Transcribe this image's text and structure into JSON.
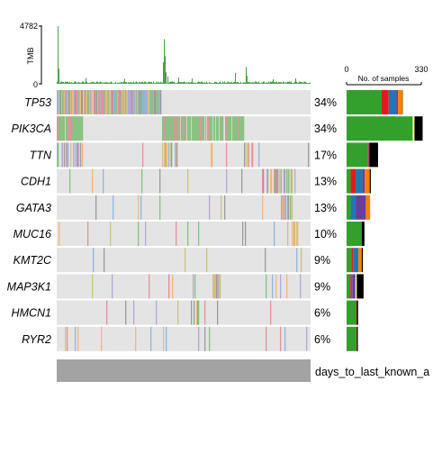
{
  "chart_data": {
    "type": "heatmap",
    "tmb": {
      "ylabel": "TMB",
      "y_ticks": [
        "0",
        "4782"
      ],
      "ylim": [
        0,
        4782
      ],
      "sample_count": 282,
      "spikes": [
        {
          "sample": 1,
          "value": 4782
        },
        {
          "sample": 2,
          "value": 1250
        },
        {
          "sample": 32,
          "value": 480
        },
        {
          "sample": 75,
          "value": 420
        },
        {
          "sample": 118,
          "value": 1800
        },
        {
          "sample": 119,
          "value": 3700
        },
        {
          "sample": 120,
          "value": 2300
        },
        {
          "sample": 121,
          "value": 950
        },
        {
          "sample": 123,
          "value": 600
        },
        {
          "sample": 135,
          "value": 520
        },
        {
          "sample": 150,
          "value": 430
        },
        {
          "sample": 198,
          "value": 900
        },
        {
          "sample": 210,
          "value": 1400
        },
        {
          "sample": 211,
          "value": 650
        },
        {
          "sample": 240,
          "value": 380
        },
        {
          "sample": 265,
          "value": 450
        }
      ]
    },
    "genes": [
      {
        "name": "TP53",
        "pct": "34%",
        "start": 0,
        "end": 115,
        "density": 0.98,
        "extra": 0.005,
        "bar": [
          {
            "color": "#33a02c",
            "value": 155
          },
          {
            "color": "#e31a1c",
            "value": 31
          },
          {
            "color": "#1f78b4",
            "value": 33
          },
          {
            "color": "#6a3d9a",
            "value": 8
          },
          {
            "color": "#ff7f00",
            "value": 19
          },
          {
            "color": "#000000",
            "value": 2
          },
          {
            "color": "#ffff99",
            "value": 4
          }
        ]
      },
      {
        "name": "PIK3CA",
        "pct": "34%",
        "start": 0,
        "end": 28,
        "density": 0.9,
        "extra": 0.0,
        "start2": 117,
        "end2": 208,
        "bar": [
          {
            "color": "#33a02c",
            "value": 292
          },
          {
            "color": "#ffff99",
            "value": 8
          },
          {
            "color": "#000000",
            "value": 36
          }
        ]
      },
      {
        "name": "TTN",
        "pct": "17%",
        "start": 0,
        "end": 28,
        "density": 0.55,
        "extra": 0.02,
        "start2": 117,
        "end2": 135,
        "start3": 208,
        "end3": 225,
        "bar": [
          {
            "color": "#33a02c",
            "value": 95
          },
          {
            "color": "#e31a1c",
            "value": 3
          },
          {
            "color": "#6a3d9a",
            "value": 3
          },
          {
            "color": "#000000",
            "value": 38
          }
        ]
      },
      {
        "name": "CDH1",
        "pct": "13%",
        "start": 228,
        "end": 262,
        "density": 0.6,
        "extra": 0.03,
        "bar": [
          {
            "color": "#33a02c",
            "value": 18
          },
          {
            "color": "#e31a1c",
            "value": 22
          },
          {
            "color": "#1f78b4",
            "value": 30
          },
          {
            "color": "#6a3d9a",
            "value": 10
          },
          {
            "color": "#ff7f00",
            "value": 22
          },
          {
            "color": "#000000",
            "value": 5
          }
        ]
      },
      {
        "name": "GATA3",
        "pct": "13%",
        "start": 248,
        "end": 262,
        "density": 0.8,
        "extra": 0.03,
        "bar": [
          {
            "color": "#33a02c",
            "value": 18
          },
          {
            "color": "#1f78b4",
            "value": 22
          },
          {
            "color": "#6a3d9a",
            "value": 45
          },
          {
            "color": "#ff7f00",
            "value": 19
          }
        ]
      },
      {
        "name": "MUC16",
        "pct": "10%",
        "start": 263,
        "end": 268,
        "density": 0.3,
        "extra": 0.045,
        "bar": [
          {
            "color": "#33a02c",
            "value": 64
          },
          {
            "color": "#e31a1c",
            "value": 3
          },
          {
            "color": "#000000",
            "value": 12
          }
        ]
      },
      {
        "name": "KMT2C",
        "pct": "9%",
        "start": 263,
        "end": 270,
        "density": 0.4,
        "extra": 0.04,
        "bar": [
          {
            "color": "#33a02c",
            "value": 21
          },
          {
            "color": "#e31a1c",
            "value": 8
          },
          {
            "color": "#1f78b4",
            "value": 23
          },
          {
            "color": "#ff7f00",
            "value": 15
          },
          {
            "color": "#000000",
            "value": 5
          }
        ]
      },
      {
        "name": "MAP3K1",
        "pct": "9%",
        "start": 172,
        "end": 182,
        "density": 0.8,
        "extra": 0.03,
        "bar": [
          {
            "color": "#33a02c",
            "value": 14
          },
          {
            "color": "#e31a1c",
            "value": 5
          },
          {
            "color": "#1f78b4",
            "value": 6
          },
          {
            "color": "#6a3d9a",
            "value": 14
          },
          {
            "color": "#ffff99",
            "value": 6
          },
          {
            "color": "#000000",
            "value": 30
          }
        ]
      },
      {
        "name": "HMCN1",
        "pct": "6%",
        "start": 0,
        "end": 0,
        "density": 0.0,
        "extra": 0.055,
        "bar": [
          {
            "color": "#33a02c",
            "value": 42
          },
          {
            "color": "#e31a1c",
            "value": 3
          },
          {
            "color": "#000000",
            "value": 6
          }
        ]
      },
      {
        "name": "RYR2",
        "pct": "6%",
        "start": 0,
        "end": 0,
        "density": 0.0,
        "extra": 0.055,
        "bar": [
          {
            "color": "#33a02c",
            "value": 43
          },
          {
            "color": "#e31a1c",
            "value": 2
          },
          {
            "color": "#000000",
            "value": 5
          }
        ]
      }
    ],
    "bar_axis": {
      "label": "No. of samples",
      "ticks": [
        "0",
        "330"
      ],
      "max": 330
    },
    "annotation": {
      "label": "days_to_last_known_a",
      "color": "#a3a3a3"
    },
    "colors": {
      "background": "#e3e3e3",
      "tmb_bar": "#1a8a1a",
      "mutation_palette": [
        "#87c17f",
        "#e48e97",
        "#8fb4dc",
        "#b3a5d2",
        "#f3b37a",
        "#999999",
        "#c4c480"
      ],
      "bar_palette": [
        "#33a02c",
        "#e31a1c",
        "#1f78b4",
        "#6a3d9a",
        "#ff7f00",
        "#000000",
        "#ffff99"
      ]
    }
  }
}
